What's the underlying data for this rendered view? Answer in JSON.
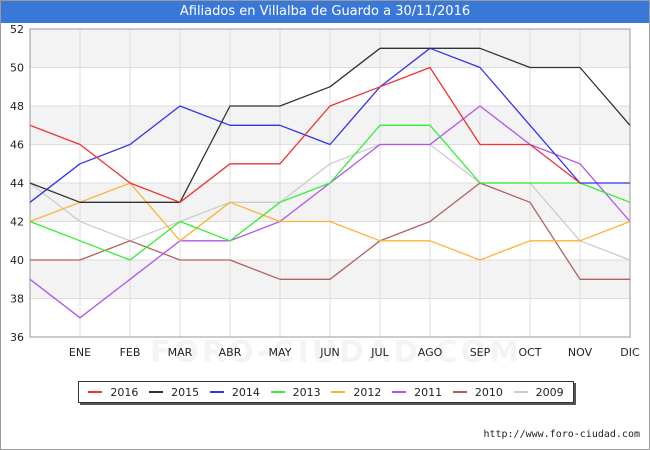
{
  "header": {
    "title": "Afiliados en Villalba de Guardo a 30/11/2016"
  },
  "watermark": "FORO-CIUDAD.COM",
  "footer": {
    "url": "http://www.foro-ciudad.com"
  },
  "chart_data": {
    "type": "line",
    "categories": [
      "",
      "ENE",
      "FEB",
      "MAR",
      "ABR",
      "MAY",
      "JUN",
      "JUL",
      "AGO",
      "SEP",
      "OCT",
      "NOV",
      "DIC"
    ],
    "ylim": [
      36,
      52
    ],
    "yticks": [
      36,
      38,
      40,
      42,
      44,
      46,
      48,
      50,
      52
    ],
    "grid": true,
    "legend_position": "bottom",
    "series": [
      {
        "name": "2016",
        "color": "#ee3333",
        "values": [
          47,
          46,
          44,
          43,
          45,
          45,
          48,
          49,
          50,
          46,
          46,
          44,
          null
        ]
      },
      {
        "name": "2015",
        "color": "#333333",
        "values": [
          44,
          43,
          43,
          43,
          48,
          48,
          49,
          51,
          51,
          51,
          50,
          50,
          47
        ]
      },
      {
        "name": "2014",
        "color": "#3333ee",
        "values": [
          43,
          45,
          46,
          48,
          47,
          47,
          46,
          49,
          51,
          50,
          47,
          44,
          44
        ]
      },
      {
        "name": "2013",
        "color": "#33ee33",
        "values": [
          42,
          41,
          40,
          42,
          41,
          43,
          44,
          47,
          47,
          44,
          44,
          44,
          43
        ]
      },
      {
        "name": "2012",
        "color": "#ffb233",
        "values": [
          42,
          43,
          44,
          41,
          43,
          42,
          42,
          41,
          41,
          40,
          41,
          41,
          42
        ]
      },
      {
        "name": "2011",
        "color": "#b055ee",
        "values": [
          39,
          37,
          39,
          41,
          41,
          42,
          44,
          46,
          46,
          48,
          46,
          45,
          42
        ]
      },
      {
        "name": "2010",
        "color": "#b06060",
        "values": [
          40,
          40,
          41,
          40,
          40,
          39,
          39,
          41,
          42,
          44,
          43,
          39,
          39
        ]
      },
      {
        "name": "2009",
        "color": "#cccccc",
        "values": [
          44,
          42,
          41,
          42,
          43,
          43,
          45,
          46,
          46,
          44,
          44,
          41,
          40
        ]
      }
    ]
  }
}
